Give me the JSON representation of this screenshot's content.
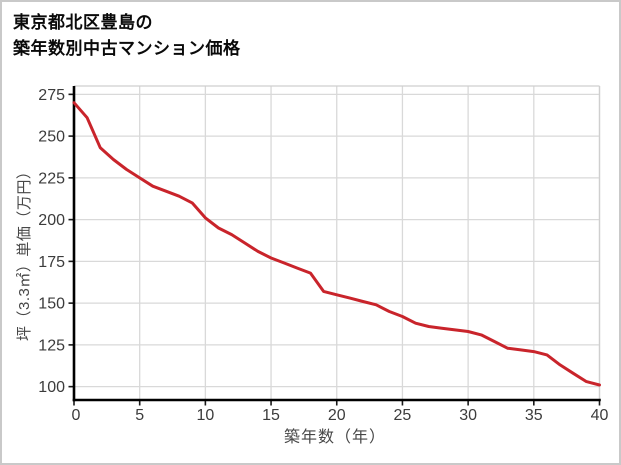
{
  "title": {
    "line1": "東京都北区豊島の",
    "line2": "築年数別中古マンション価格"
  },
  "chart_data": {
    "type": "line",
    "title": "東京都北区豊島の 築年数別中古マンション価格",
    "xlabel": "築年数（年）",
    "ylabel": "坪（3.3㎡）単価（万円）",
    "x": [
      0,
      1,
      2,
      3,
      4,
      5,
      6,
      7,
      8,
      9,
      10,
      11,
      12,
      13,
      14,
      15,
      16,
      17,
      18,
      19,
      20,
      21,
      22,
      23,
      24,
      25,
      26,
      27,
      28,
      29,
      30,
      31,
      32,
      33,
      34,
      35,
      36,
      37,
      38,
      39,
      40
    ],
    "series": [
      {
        "name": "坪単価（万円）",
        "values": [
          270,
          261,
          243,
          236,
          230,
          225,
          220,
          217,
          214,
          210,
          201,
          195,
          191,
          186,
          181,
          177,
          174,
          171,
          168,
          157,
          155,
          153,
          151,
          149,
          145,
          142,
          138,
          136,
          135,
          134,
          133,
          131,
          127,
          123,
          122,
          121,
          119,
          113,
          108,
          103,
          101
        ]
      }
    ],
    "xlim": [
      0,
      40
    ],
    "ylim": [
      92,
      280
    ],
    "xticks": [
      0,
      5,
      10,
      15,
      20,
      25,
      30,
      35,
      40
    ],
    "yticks": [
      100,
      125,
      150,
      175,
      200,
      225,
      250,
      275
    ],
    "grid": true,
    "legend": false,
    "line_color": "#c9242b",
    "grid_color": "#d9d9d9",
    "spine_color": "#000000",
    "minor_spine_color": "#cfcfcf",
    "tick_label_color": "#3c3c3c"
  }
}
